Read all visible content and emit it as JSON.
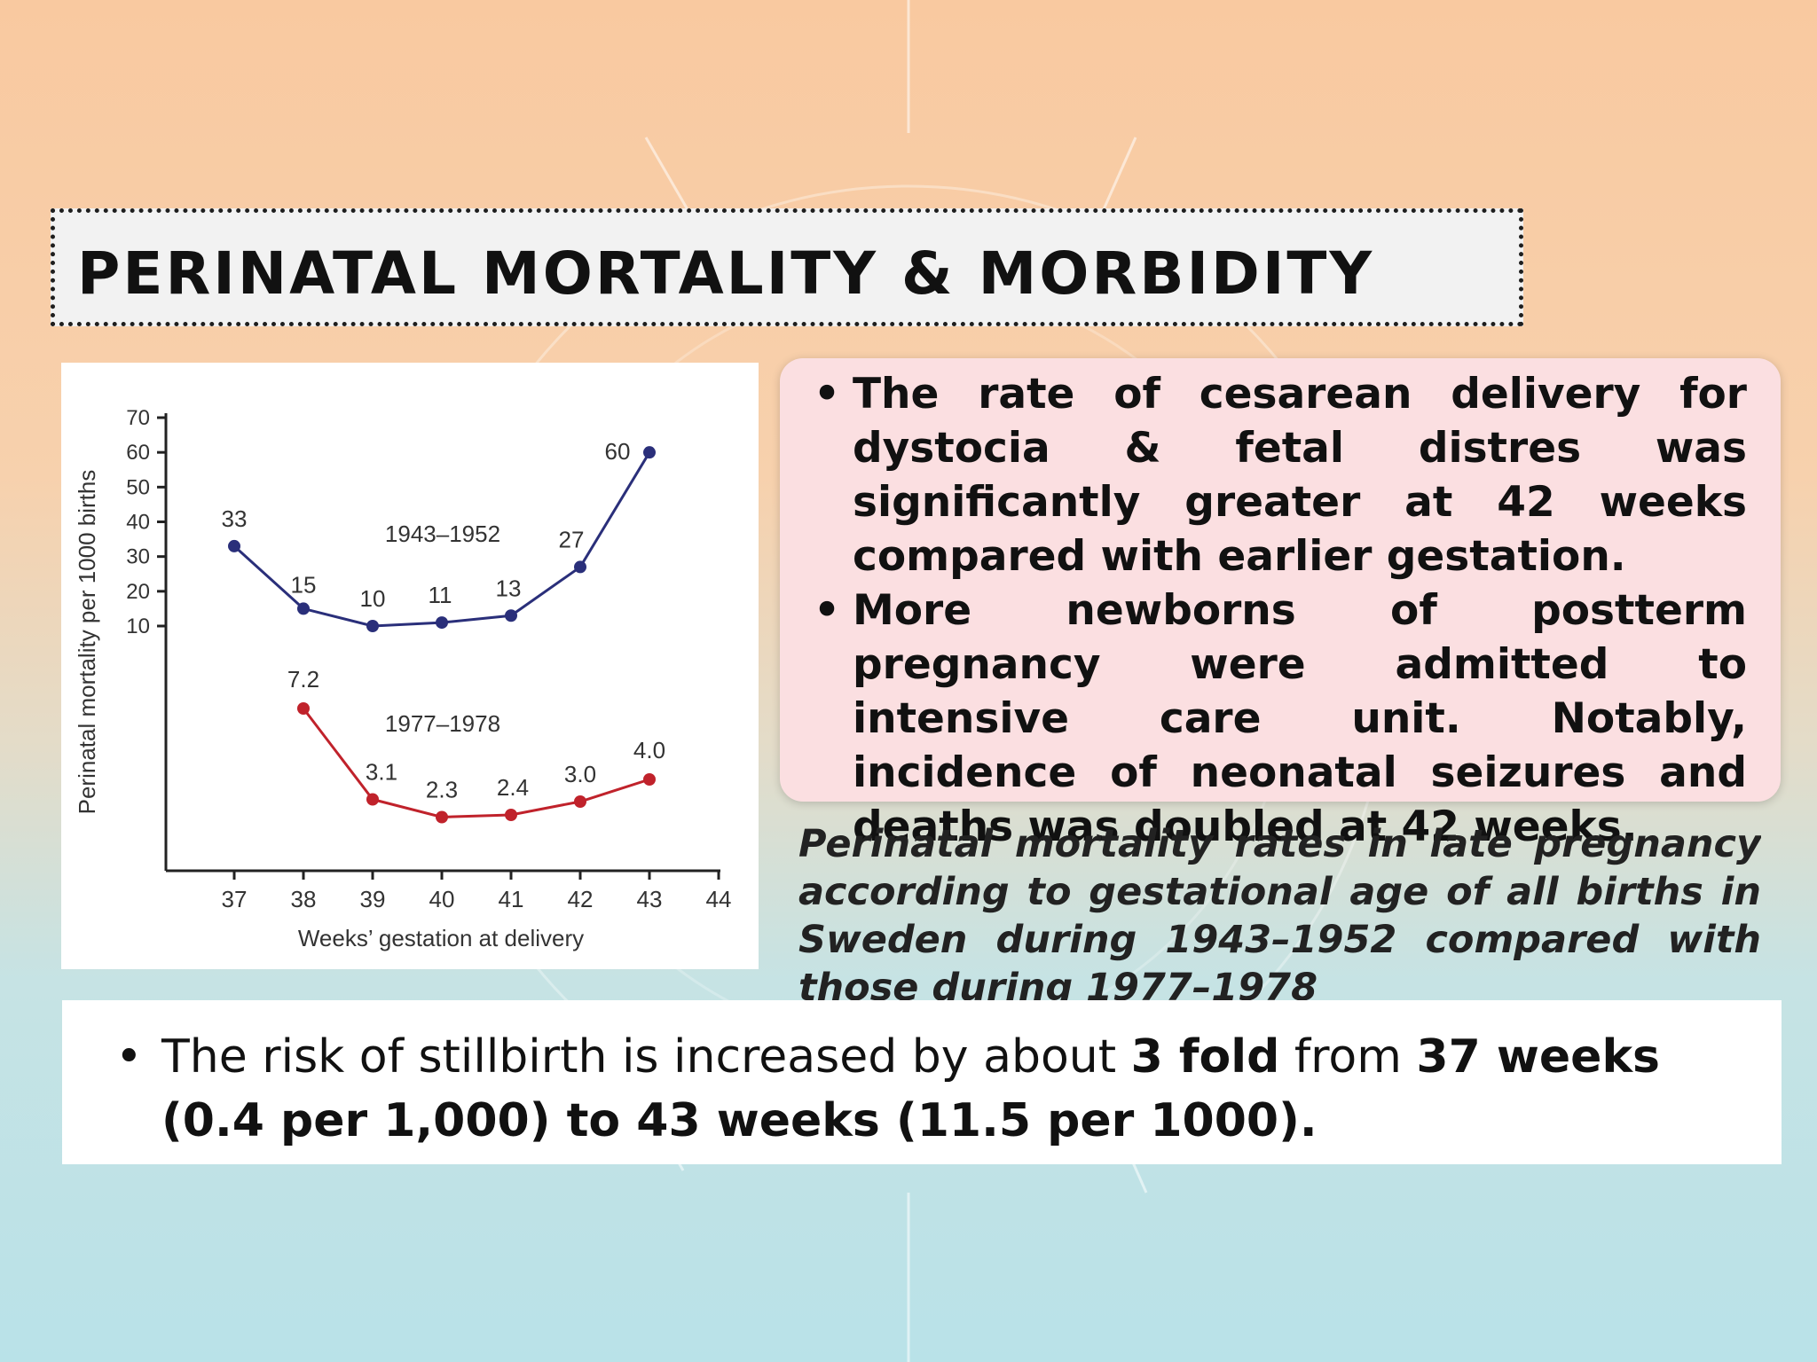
{
  "slide": {
    "title": "PERINATAL MORTALITY & MORBIDITY",
    "bullets": [
      "The rate of cesarean delivery for dystocia & fetal distres was significantly greater at 42 weeks compared with earlier gestation.",
      "More newborns of postterm pregnancy were admitted to intensive care unit. Notably, incidence of neonatal seizures and deaths was doubled at 42 weeks."
    ],
    "caption": "Perinatal mortality rates in late pregnancy according to gestational age of all births in Sweden during 1943–1952 compared with those during 1977–1978",
    "bottom_bullet": {
      "segments": [
        {
          "text": "The risk of stillbirth is increased by about ",
          "bold": false
        },
        {
          "text": "3 fold",
          "bold": true
        },
        {
          "text": " from ",
          "bold": false
        },
        {
          "text": "37 weeks (0.4 per 1,000) to 43 weeks (11.5 per 1000).",
          "bold": true
        }
      ]
    },
    "bullet_glyph": "•"
  },
  "chart_data": {
    "type": "line",
    "xlabel": "Weeks’ gestation at delivery",
    "ylabel": "Perinatal mortality per 1000 births",
    "x_ticks": [
      37,
      38,
      39,
      40,
      41,
      42,
      43,
      44
    ],
    "y_ticks": [
      10,
      20,
      30,
      40,
      50,
      60,
      70
    ],
    "xlim": [
      36,
      44
    ],
    "ylim": [
      0,
      70
    ],
    "y_scale": "broken: lower region unscaled, upper region linear 10–70",
    "grid": false,
    "series": [
      {
        "name": "1943–1952",
        "color": "#2a2f7a",
        "points": [
          {
            "x": 37,
            "y": 33,
            "label": "33"
          },
          {
            "x": 38,
            "y": 15,
            "label": "15"
          },
          {
            "x": 39,
            "y": 10,
            "label": "10"
          },
          {
            "x": 40,
            "y": 11,
            "label": "11"
          },
          {
            "x": 41,
            "y": 13,
            "label": "13"
          },
          {
            "x": 42,
            "y": 27,
            "label": "27"
          },
          {
            "x": 43,
            "y": 60,
            "label": "60"
          }
        ]
      },
      {
        "name": "1977–1978",
        "color": "#c0222b",
        "points": [
          {
            "x": 38,
            "y": 7.2,
            "label": "7.2"
          },
          {
            "x": 39,
            "y": 3.1,
            "label": "3.1"
          },
          {
            "x": 40,
            "y": 2.3,
            "label": "2.3"
          },
          {
            "x": 41,
            "y": 2.4,
            "label": "2.4"
          },
          {
            "x": 42,
            "y": 3.0,
            "label": "3.0"
          },
          {
            "x": 43,
            "y": 4.0,
            "label": "4.0"
          }
        ]
      }
    ]
  }
}
